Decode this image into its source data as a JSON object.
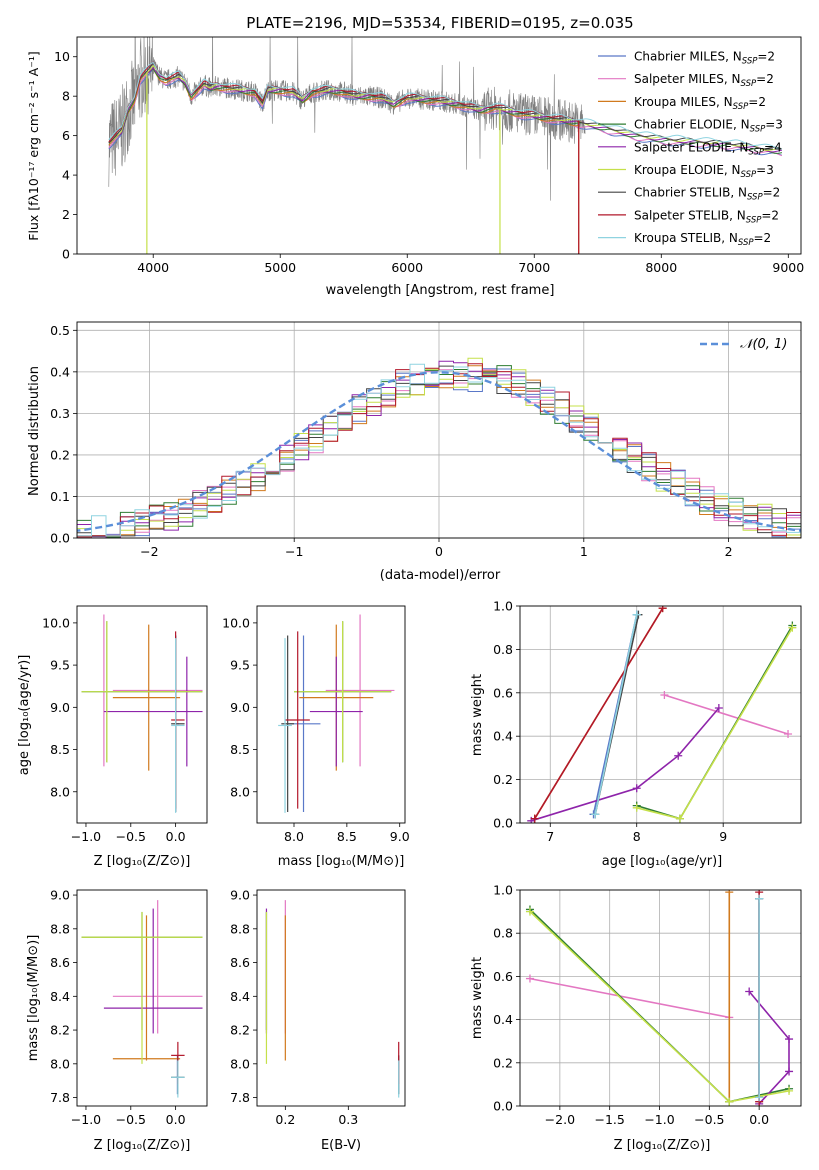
{
  "colors": {
    "Chabrier MILES": "#5a78c8",
    "Salpeter MILES": "#e377c2",
    "Kroupa MILES": "#d17a1e",
    "Chabrier ELODIE": "#2f7d32",
    "Salpeter ELODIE": "#8e24aa",
    "Kroupa ELODIE": "#c5e04a",
    "Chabrier STELIB": "#444444",
    "Salpeter STELIB": "#b2182b",
    "Kroupa STELIB": "#8fd3e0",
    "data": "#808080",
    "normal": "#5b8fd9"
  },
  "legend_entries": [
    {
      "model": "Chabrier MILES",
      "label": "Chabrier MILES, N",
      "sub": "SSP",
      "tail": "=2"
    },
    {
      "model": "Salpeter MILES",
      "label": "Salpeter MILES, N",
      "sub": "SSP",
      "tail": "=2"
    },
    {
      "model": "Kroupa MILES",
      "label": "Kroupa MILES, N",
      "sub": "SSP",
      "tail": "=2"
    },
    {
      "model": "Chabrier ELODIE",
      "label": "Chabrier ELODIE, N",
      "sub": "SSP",
      "tail": "=3"
    },
    {
      "model": "Salpeter ELODIE",
      "label": "Salpeter ELODIE, N",
      "sub": "SSP",
      "tail": "=4"
    },
    {
      "model": "Kroupa ELODIE",
      "label": "Kroupa ELODIE, N",
      "sub": "SSP",
      "tail": "=3"
    },
    {
      "model": "Chabrier STELIB",
      "label": "Chabrier STELIB, N",
      "sub": "SSP",
      "tail": "=2"
    },
    {
      "model": "Salpeter STELIB",
      "label": "Salpeter STELIB, N",
      "sub": "SSP",
      "tail": "=2"
    },
    {
      "model": "Kroupa STELIB",
      "label": "Kroupa STELIB, N",
      "sub": "SSP",
      "tail": "=2"
    }
  ],
  "chart_data": [
    {
      "type": "line",
      "id": "spectrum",
      "title": "PLATE=2196, MJD=53534, FIBERID=0195, z=0.035",
      "xlabel": "wavelength [Angstrom, rest frame]",
      "ylabel": "Flux [fλ10⁻¹⁷ erg cm⁻² s⁻¹ A⁻¹]",
      "xlim": [
        3400,
        9100
      ],
      "ylim": [
        0,
        11
      ],
      "xticks": [
        4000,
        5000,
        6000,
        7000,
        8000,
        9000
      ],
      "yticks": [
        0,
        2,
        4,
        6,
        8,
        10
      ],
      "legend": "upper-right",
      "continuum": [
        [
          3650,
          5.6
        ],
        [
          3700,
          5.9
        ],
        [
          3750,
          6.2
        ],
        [
          3800,
          7.3
        ],
        [
          3850,
          7.8
        ],
        [
          3900,
          8.9
        ],
        [
          3950,
          9.2
        ],
        [
          4000,
          9.5
        ],
        [
          4050,
          9.0
        ],
        [
          4100,
          8.8
        ],
        [
          4150,
          8.9
        ],
        [
          4200,
          9.0
        ],
        [
          4250,
          8.7
        ],
        [
          4300,
          8.0
        ],
        [
          4350,
          8.3
        ],
        [
          4400,
          8.6
        ],
        [
          4450,
          8.4
        ],
        [
          4500,
          8.5
        ],
        [
          4600,
          8.4
        ],
        [
          4700,
          8.3
        ],
        [
          4800,
          8.2
        ],
        [
          4861,
          7.6
        ],
        [
          4900,
          8.3
        ],
        [
          5000,
          8.3
        ],
        [
          5100,
          8.2
        ],
        [
          5175,
          7.8
        ],
        [
          5250,
          8.2
        ],
        [
          5400,
          8.3
        ],
        [
          5500,
          8.2
        ],
        [
          5600,
          8.0
        ],
        [
          5700,
          8.0
        ],
        [
          5800,
          7.9
        ],
        [
          5893,
          7.6
        ],
        [
          6000,
          7.9
        ],
        [
          6200,
          7.8
        ],
        [
          6400,
          7.6
        ],
        [
          6563,
          7.3
        ],
        [
          6700,
          7.4
        ],
        [
          6900,
          7.1
        ],
        [
          7100,
          6.9
        ],
        [
          7300,
          6.7
        ],
        [
          7400,
          6.6
        ]
      ],
      "model_tail": [
        [
          7400,
          6.6
        ],
        [
          7600,
          6.3
        ],
        [
          7800,
          6.0
        ],
        [
          8000,
          5.8
        ],
        [
          8200,
          5.7
        ],
        [
          8400,
          5.6
        ],
        [
          8600,
          5.5
        ],
        [
          8800,
          5.3
        ],
        [
          8950,
          5.2
        ]
      ],
      "data_range": [
        3650,
        7400
      ],
      "model_drops": {
        "Kroupa ELODIE": [
          3950,
          6730
        ],
        "Kroupa MILES": [
          7350
        ],
        "Salpeter STELIB": [
          7350
        ]
      }
    },
    {
      "type": "line",
      "id": "residuals",
      "xlabel": "(data-model)/error",
      "ylabel": "Normed distribution",
      "xlim": [
        -2.5,
        2.5
      ],
      "ylim": [
        0,
        0.52
      ],
      "xticks": [
        -2,
        -1,
        0,
        1,
        2
      ],
      "yticks": [
        0.0,
        0.1,
        0.2,
        0.3,
        0.4,
        0.5
      ],
      "legend": "upper-right",
      "legend_label": "𝒩(0, 1)",
      "bin_width": 0.1,
      "grid": true
    },
    {
      "type": "scatter",
      "id": "z-age",
      "xlabel": "Z [log₁₀(Z/Z⊙)]",
      "ylabel": "age  [log₁₀(age/yr)]",
      "xlim": [
        -1.1,
        0.35
      ],
      "ylim": [
        7.63,
        10.2
      ],
      "xticks": [
        -1.0,
        -0.5,
        0.0
      ],
      "yticks": [
        8.0,
        8.5,
        9.0,
        9.5,
        10.0
      ]
    },
    {
      "type": "scatter",
      "id": "mass-age",
      "xlabel": "mass [log₁₀(M/M⊙)]",
      "ylabel": "",
      "xlim": [
        7.65,
        9.05
      ],
      "ylim": [
        7.63,
        10.2
      ],
      "xticks": [
        8.0,
        8.5,
        9.0
      ],
      "yticks": [
        8.0,
        8.5,
        9.0,
        9.5,
        10.0
      ]
    },
    {
      "type": "line",
      "id": "age-weight",
      "xlabel": "age  [log₁₀(age/yr)]",
      "ylabel": "mass weight",
      "xlim": [
        6.65,
        9.9
      ],
      "ylim": [
        0,
        1.0
      ],
      "xticks": [
        7,
        8,
        9
      ],
      "yticks": [
        0.0,
        0.2,
        0.4,
        0.6,
        0.8,
        1.0
      ],
      "grid": true
    },
    {
      "type": "scatter",
      "id": "z-mass",
      "xlabel": "Z [log₁₀(Z/Z⊙)]",
      "ylabel": "mass [log₁₀(M/M⊙)]",
      "xlim": [
        -1.1,
        0.35
      ],
      "ylim": [
        7.75,
        9.03
      ],
      "xticks": [
        -1.0,
        -0.5,
        0.0
      ],
      "yticks": [
        7.8,
        8.0,
        8.2,
        8.4,
        8.6,
        8.8,
        9.0
      ]
    },
    {
      "type": "scatter",
      "id": "ebv-mass",
      "xlabel": "E(B-V)",
      "ylabel": "",
      "xlim": [
        0.155,
        0.39
      ],
      "ylim": [
        7.75,
        9.03
      ],
      "xticks": [
        0.2,
        0.3
      ],
      "yticks": [
        7.8,
        8.0,
        8.2,
        8.4,
        8.6,
        8.8,
        9.0
      ]
    },
    {
      "type": "line",
      "id": "z-weight",
      "xlabel": "Z [log₁₀(Z/Z⊙)]",
      "ylabel": "mass weight",
      "xlim": [
        -2.4,
        0.42
      ],
      "ylim": [
        0,
        1.0
      ],
      "xticks": [
        -2.0,
        -1.5,
        -1.0,
        -0.5,
        0.0
      ],
      "yticks": [
        0.0,
        0.2,
        0.4,
        0.6,
        0.8,
        1.0
      ],
      "grid": true
    }
  ],
  "models": [
    {
      "name": "Chabrier MILES",
      "age": [
        7.5,
        8.0
      ],
      "Z": [
        0.0,
        0.0
      ],
      "w": [
        0.04,
        0.96
      ],
      "mass": 7.92,
      "mass_range": [
        7.82,
        8.05
      ],
      "age_range": [
        7.76,
        9.85
      ],
      "ebv": 0.38,
      "crossZ": [
        0.0,
        0.04
      ],
      "crossM": [
        7.93,
        8.25
      ]
    },
    {
      "name": "Salpeter MILES",
      "age": [
        8.32,
        9.75
      ],
      "Z": [
        -2.3,
        -0.3
      ],
      "w": [
        0.59,
        0.41
      ],
      "mass": 8.4,
      "mass_range": [
        8.18,
        8.97
      ],
      "age_range": [
        8.3,
        10.1
      ],
      "ebv": 0.2,
      "crossZ": [
        -0.7,
        0.3
      ],
      "crossM": [
        8.3,
        8.95
      ]
    },
    {
      "name": "Kroupa MILES",
      "age": [
        6.82,
        8.3
      ],
      "Z": [
        -0.3,
        -0.3
      ],
      "w": [
        0.02,
        0.99
      ],
      "mass": 8.03,
      "mass_range": [
        8.02,
        8.88
      ],
      "age_range": [
        8.25,
        9.98
      ],
      "ebv": 0.2,
      "crossZ": [
        -0.7,
        0.05
      ],
      "crossM": [
        8.05,
        8.75
      ]
    },
    {
      "name": "Chabrier ELODIE",
      "age": [
        8.0,
        8.5,
        9.8
      ],
      "Z": [
        0.3,
        -0.3,
        -2.3
      ],
      "w": [
        0.08,
        0.02,
        0.91
      ],
      "mass": 8.75,
      "mass_range": [
        8.2,
        8.9
      ],
      "age_range": [
        8.35,
        10.02
      ],
      "ebv": 0.17,
      "crossZ": [
        -1.05,
        0.3
      ],
      "crossM": [
        8.0,
        8.92
      ]
    },
    {
      "name": "Salpeter ELODIE",
      "age": [
        6.78,
        8.0,
        8.48,
        8.95
      ],
      "Z": [
        0.0,
        0.3,
        0.3,
        -0.1
      ],
      "w": [
        0.01,
        0.16,
        0.31,
        0.53
      ],
      "mass": 8.33,
      "mass_range": [
        8.18,
        8.92
      ],
      "age_range": [
        8.3,
        9.6
      ],
      "ebv": 0.17,
      "crossZ": [
        -0.8,
        0.3
      ],
      "crossM": [
        8.15,
        8.65
      ]
    },
    {
      "name": "Kroupa ELODIE",
      "age": [
        8.0,
        8.5,
        9.8
      ],
      "Z": [
        0.3,
        -0.3,
        -2.3
      ],
      "w": [
        0.07,
        0.02,
        0.9
      ],
      "mass": 8.75,
      "mass_range": [
        8.0,
        8.9
      ],
      "age_range": [
        8.35,
        10.02
      ],
      "ebv": 0.17,
      "crossZ": [
        -1.05,
        0.3
      ],
      "crossM": [
        8.0,
        8.92
      ]
    },
    {
      "name": "Chabrier STELIB",
      "age": [
        7.52,
        8.02
      ],
      "Z": [
        0.0,
        0.0
      ],
      "w": [
        0.04,
        0.96
      ],
      "mass": 7.92,
      "mass_range": [
        7.82,
        8.05
      ],
      "age_range": [
        7.76,
        9.85
      ],
      "ebv": 0.38,
      "crossZ": [
        -0.05,
        0.1
      ],
      "crossM": [
        7.88,
        8.0
      ]
    },
    {
      "name": "Salpeter STELIB",
      "age": [
        6.82,
        8.3
      ],
      "Z": [
        0.0,
        0.0
      ],
      "w": [
        0.02,
        0.99
      ],
      "mass": 8.05,
      "mass_range": [
        7.88,
        8.13
      ],
      "age_range": [
        7.8,
        9.9
      ],
      "ebv": 0.38,
      "crossZ": [
        -0.05,
        0.1
      ],
      "crossM": [
        7.92,
        8.15
      ]
    },
    {
      "name": "Kroupa STELIB",
      "age": [
        7.52,
        8.0
      ],
      "Z": [
        0.0,
        0.0
      ],
      "w": [
        0.04,
        0.96
      ],
      "mass": 7.92,
      "mass_range": [
        7.8,
        8.02
      ],
      "age_range": [
        7.75,
        9.82
      ],
      "ebv": 0.38,
      "crossZ": [
        -0.05,
        0.1
      ],
      "crossM": [
        7.85,
        7.98
      ]
    }
  ]
}
